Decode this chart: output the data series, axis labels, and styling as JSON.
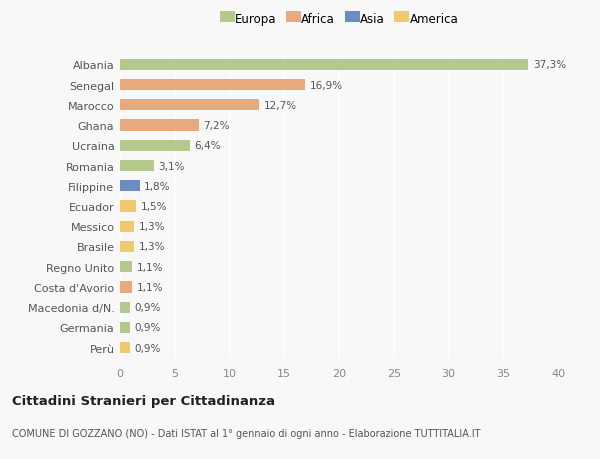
{
  "categories": [
    "Albania",
    "Senegal",
    "Marocco",
    "Ghana",
    "Ucraina",
    "Romania",
    "Filippine",
    "Ecuador",
    "Messico",
    "Brasile",
    "Regno Unito",
    "Costa d'Avorio",
    "Macedonia d/N.",
    "Germania",
    "Perù"
  ],
  "values": [
    37.3,
    16.9,
    12.7,
    7.2,
    6.4,
    3.1,
    1.8,
    1.5,
    1.3,
    1.3,
    1.1,
    1.1,
    0.9,
    0.9,
    0.9
  ],
  "labels": [
    "37,3%",
    "16,9%",
    "12,7%",
    "7,2%",
    "6,4%",
    "3,1%",
    "1,8%",
    "1,5%",
    "1,3%",
    "1,3%",
    "1,1%",
    "1,1%",
    "0,9%",
    "0,9%",
    "0,9%"
  ],
  "continents": [
    "Europa",
    "Africa",
    "Africa",
    "Africa",
    "Europa",
    "Europa",
    "Asia",
    "America",
    "America",
    "America",
    "Europa",
    "Africa",
    "Europa",
    "Europa",
    "America"
  ],
  "continent_colors": {
    "Europa": "#b5c98e",
    "Africa": "#e8a97e",
    "Asia": "#6b8dc4",
    "America": "#f0c96e"
  },
  "legend_order": [
    "Europa",
    "Africa",
    "Asia",
    "America"
  ],
  "xlim": [
    0,
    40
  ],
  "xticks": [
    0,
    5,
    10,
    15,
    20,
    25,
    30,
    35,
    40
  ],
  "title": "Cittadini Stranieri per Cittadinanza",
  "subtitle": "COMUNE DI GOZZANO (NO) - Dati ISTAT al 1° gennaio di ogni anno - Elaborazione TUTTITALIA.IT",
  "bg_color": "#f8f8f8",
  "grid_color": "#ffffff",
  "bar_height": 0.55
}
